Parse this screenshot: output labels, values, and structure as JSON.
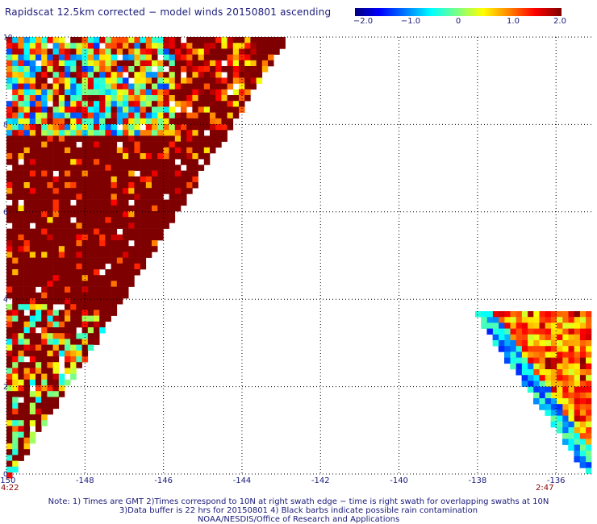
{
  "title": "Rapidscat 12.5km corrected − model winds 20150801 ascending",
  "colorbar": {
    "labels": [
      "−2.0",
      "−1.0",
      "0",
      "1.0",
      "2.0"
    ],
    "min": -2.0,
    "max": 2.0
  },
  "chart_data": {
    "type": "heatmap",
    "title": "Rapidscat 12.5km corrected − model winds 20150801 ascending",
    "x_ticks": [
      "-150",
      "-148",
      "-146",
      "-144",
      "-142",
      "-140",
      "-138",
      "-136"
    ],
    "y_ticks": [
      "0",
      "2",
      "4",
      "6",
      "8",
      "10"
    ],
    "xlim": [
      -150,
      -135.1
    ],
    "ylim": [
      0,
      10
    ],
    "value_range": [
      -2.0,
      2.0
    ],
    "grid": true,
    "swaths": [
      {
        "time": "4:22",
        "region": "west",
        "x_range": [
          -150,
          -143.2
        ],
        "dominant_value": 2.0
      },
      {
        "time": "2:47",
        "region": "east",
        "x_range": [
          -138.2,
          -135.1
        ],
        "y_range": [
          0,
          3.8
        ],
        "dominant_value": 0.8
      }
    ]
  },
  "time_labels": {
    "west": "4:22",
    "east": "2:47"
  },
  "notes": [
    "Note: 1) Times are GMT 2)Times correspond to 10N at right swath edge − time is right swath for overlapping swaths at 10N",
    "3)Data buffer is 22 hrs for 20150801 4) Black barbs indicate possible rain contamination",
    "NOAA/NESDIS/Office of Research and Applications"
  ],
  "colors": {
    "text": "#1a1a7a",
    "time": "#8b0000",
    "grid": "#000000"
  }
}
